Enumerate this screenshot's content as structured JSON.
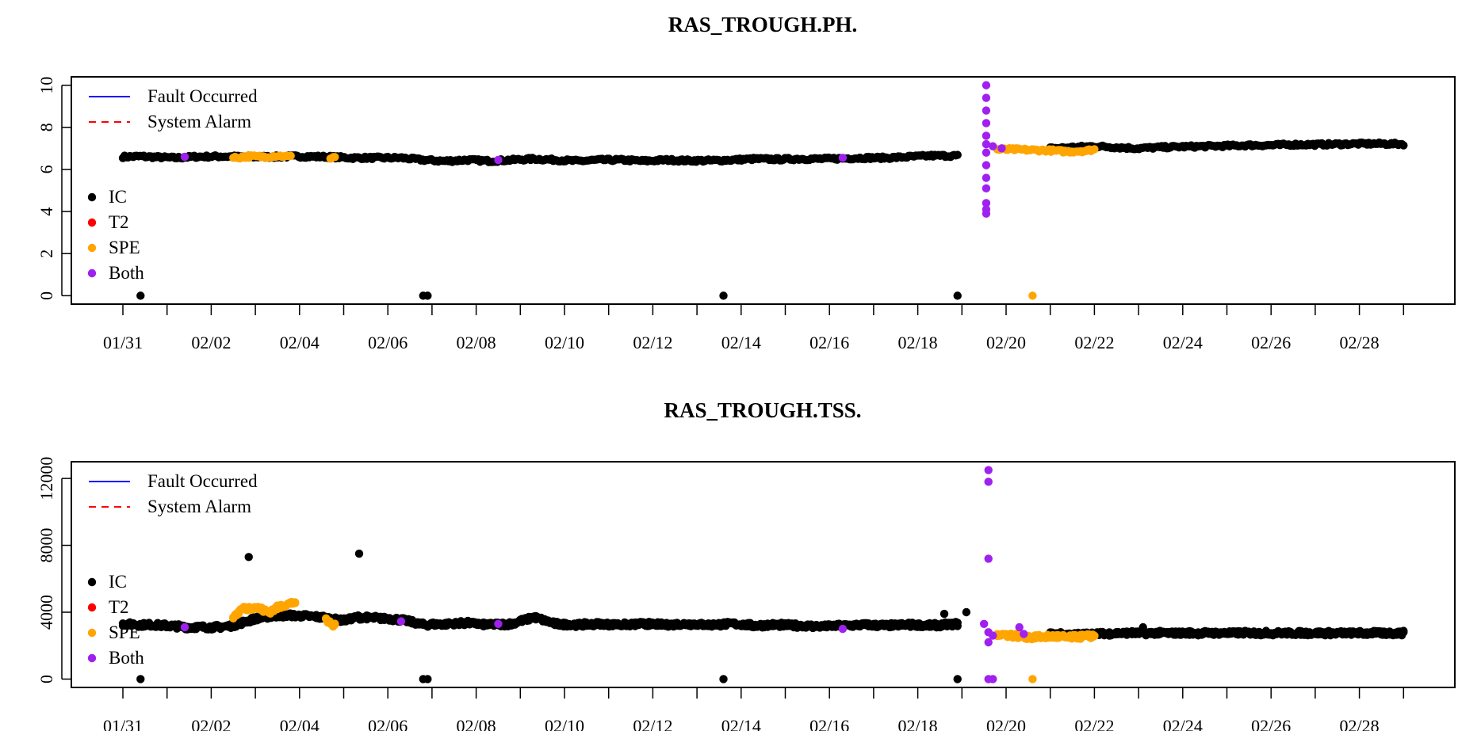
{
  "legend": {
    "lines": [
      {
        "label": "Fault Occurred",
        "color": "#0000ff",
        "dash": "solid"
      },
      {
        "label": "System Alarm",
        "color": "#ff0000",
        "dash": "dashed"
      }
    ],
    "points": [
      {
        "label": "IC",
        "color": "#000000"
      },
      {
        "label": "T2",
        "color": "#ff0000"
      },
      {
        "label": "SPE",
        "color": "#ffa500"
      },
      {
        "label": "Both",
        "color": "#a020f0"
      }
    ]
  },
  "chart_data": [
    {
      "type": "scatter",
      "title": "RAS_TROUGH.PH.",
      "xlabel": "",
      "ylabel": "",
      "x_tick_labels": [
        "01/31",
        "02/02",
        "02/04",
        "02/06",
        "02/08",
        "02/10",
        "02/12",
        "02/14",
        "02/16",
        "02/18",
        "02/20",
        "02/22",
        "02/24",
        "02/26",
        "02/28"
      ],
      "x_range_days": [
        "01/30",
        "03/02"
      ],
      "y_ticks": [
        0,
        2,
        4,
        6,
        8,
        10
      ],
      "ylim": [
        -0.4,
        10.4
      ],
      "grid": false,
      "legend_placement": "left",
      "series": [
        {
          "name": "IC",
          "color": "#000000",
          "segments": [
            {
              "x_start": "01/31 00:00",
              "x_end": "02/19 09:00",
              "values": [
                [
                  0.0,
                  6.6
                ],
                [
                  0.4,
                  6.62
                ],
                [
                  0.8,
                  6.58
                ],
                [
                  1.2,
                  6.55
                ],
                [
                  1.6,
                  6.6
                ],
                [
                  2.2,
                  6.62
                ],
                [
                  2.8,
                  6.6
                ],
                [
                  3.4,
                  6.6
                ],
                [
                  4.0,
                  6.62
                ],
                [
                  4.6,
                  6.6
                ],
                [
                  5.2,
                  6.55
                ],
                [
                  5.8,
                  6.55
                ],
                [
                  6.3,
                  6.55
                ],
                [
                  6.8,
                  6.45
                ],
                [
                  7.3,
                  6.4
                ],
                [
                  7.8,
                  6.45
                ],
                [
                  8.3,
                  6.4
                ],
                [
                  8.8,
                  6.45
                ],
                [
                  9.3,
                  6.5
                ],
                [
                  9.8,
                  6.45
                ],
                [
                  10.3,
                  6.4
                ],
                [
                  10.8,
                  6.45
                ],
                [
                  11.3,
                  6.45
                ],
                [
                  11.8,
                  6.4
                ],
                [
                  12.3,
                  6.45
                ],
                [
                  12.8,
                  6.42
                ],
                [
                  13.3,
                  6.42
                ],
                [
                  13.8,
                  6.45
                ],
                [
                  14.3,
                  6.5
                ],
                [
                  14.8,
                  6.48
                ],
                [
                  15.3,
                  6.5
                ],
                [
                  15.8,
                  6.5
                ],
                [
                  16.3,
                  6.52
                ],
                [
                  16.8,
                  6.55
                ],
                [
                  17.3,
                  6.55
                ],
                [
                  17.8,
                  6.6
                ],
                [
                  18.3,
                  6.65
                ],
                [
                  18.9,
                  6.65
                ]
              ]
            },
            {
              "x_start": "02/22 00:00",
              "x_end": "02/28 12:00",
              "values": [
                [
                  21.0,
                  7.0
                ],
                [
                  21.5,
                  7.05
                ],
                [
                  22.0,
                  7.1
                ],
                [
                  22.5,
                  7.05
                ],
                [
                  23.0,
                  7.0
                ],
                [
                  23.5,
                  7.05
                ],
                [
                  24.0,
                  7.08
                ],
                [
                  24.5,
                  7.1
                ],
                [
                  25.0,
                  7.12
                ],
                [
                  25.5,
                  7.15
                ],
                [
                  26.0,
                  7.15
                ],
                [
                  26.5,
                  7.18
                ],
                [
                  27.0,
                  7.18
                ],
                [
                  27.5,
                  7.2
                ],
                [
                  28.0,
                  7.22
                ],
                [
                  28.5,
                  7.22
                ],
                [
                  29.0,
                  7.2
                ]
              ]
            }
          ],
          "outliers": [
            [
              0.4,
              0.0
            ],
            [
              6.8,
              0.0
            ],
            [
              6.9,
              0.0
            ],
            [
              13.6,
              0.0
            ],
            [
              18.9,
              0.0
            ]
          ]
        },
        {
          "name": "SPE",
          "color": "#ffa500",
          "segments": [
            {
              "x_start": "02/02 12:00",
              "x_end": "02/03 12:00",
              "values": [
                [
                  2.5,
                  6.55
                ],
                [
                  2.9,
                  6.62
                ],
                [
                  3.2,
                  6.6
                ],
                [
                  3.5,
                  6.65
                ],
                [
                  3.8,
                  6.6
                ]
              ]
            },
            {
              "x_start": "02/04 18:00",
              "x_end": "02/04 20:00",
              "values": [
                [
                  4.7,
                  6.55
                ],
                [
                  4.8,
                  6.6
                ]
              ]
            },
            {
              "x_start": "02/19 18:00",
              "x_end": "02/21 23:00",
              "values": [
                [
                  19.8,
                  6.95
                ],
                [
                  20.2,
                  6.95
                ],
                [
                  20.6,
                  6.92
                ],
                [
                  21.0,
                  6.9
                ],
                [
                  21.4,
                  6.85
                ],
                [
                  21.8,
                  6.88
                ],
                [
                  22.0,
                  6.95
                ]
              ]
            }
          ],
          "outliers": [
            [
              20.6,
              0.0
            ]
          ]
        },
        {
          "name": "Both",
          "color": "#a020f0",
          "points": [
            [
              19.55,
              10.0
            ],
            [
              19.55,
              9.4
            ],
            [
              19.55,
              8.8
            ],
            [
              19.55,
              8.2
            ],
            [
              19.55,
              7.6
            ],
            [
              19.55,
              7.2
            ],
            [
              19.55,
              6.8
            ],
            [
              19.55,
              6.2
            ],
            [
              19.55,
              5.6
            ],
            [
              19.55,
              5.1
            ],
            [
              19.55,
              4.4
            ],
            [
              19.55,
              4.1
            ],
            [
              19.55,
              3.9
            ],
            [
              19.7,
              7.1
            ],
            [
              19.9,
              7.0
            ],
            [
              1.4,
              6.6
            ],
            [
              8.5,
              6.45
            ],
            [
              16.3,
              6.55
            ]
          ]
        }
      ]
    },
    {
      "type": "scatter",
      "title": "RAS_TROUGH.TSS.",
      "xlabel": "",
      "ylabel": "",
      "x_tick_labels": [
        "01/31",
        "02/02",
        "02/04",
        "02/06",
        "02/08",
        "02/10",
        "02/12",
        "02/14",
        "02/16",
        "02/18",
        "02/20",
        "02/22",
        "02/24",
        "02/26",
        "02/28"
      ],
      "x_range_days": [
        "01/30",
        "03/02"
      ],
      "y_ticks": [
        0,
        4000,
        8000,
        12000
      ],
      "ylim": [
        -500,
        13000
      ],
      "grid": false,
      "legend_placement": "left",
      "series": [
        {
          "name": "IC",
          "color": "#000000",
          "segments": [
            {
              "x_start": "01/31 00:00",
              "x_end": "02/19 09:00",
              "values": [
                [
                  0.0,
                  3300
                ],
                [
                  0.5,
                  3250
                ],
                [
                  1.0,
                  3200
                ],
                [
                  1.5,
                  3100
                ],
                [
                  2.0,
                  3100
                ],
                [
                  2.4,
                  3150
                ],
                [
                  3.0,
                  3600
                ],
                [
                  3.5,
                  3800
                ],
                [
                  4.0,
                  3800
                ],
                [
                  4.5,
                  3700
                ],
                [
                  5.0,
                  3500
                ],
                [
                  5.3,
                  3700
                ],
                [
                  5.8,
                  3650
                ],
                [
                  6.3,
                  3550
                ],
                [
                  6.8,
                  3250
                ],
                [
                  7.3,
                  3300
                ],
                [
                  7.8,
                  3350
                ],
                [
                  8.3,
                  3250
                ],
                [
                  8.8,
                  3300
                ],
                [
                  9.3,
                  3700
                ],
                [
                  9.8,
                  3300
                ],
                [
                  10.3,
                  3250
                ],
                [
                  10.8,
                  3300
                ],
                [
                  11.3,
                  3250
                ],
                [
                  11.8,
                  3300
                ],
                [
                  12.3,
                  3250
                ],
                [
                  12.8,
                  3300
                ],
                [
                  13.3,
                  3250
                ],
                [
                  13.8,
                  3300
                ],
                [
                  14.3,
                  3200
                ],
                [
                  14.8,
                  3250
                ],
                [
                  15.3,
                  3200
                ],
                [
                  15.8,
                  3150
                ],
                [
                  16.3,
                  3200
                ],
                [
                  16.8,
                  3250
                ],
                [
                  17.3,
                  3200
                ],
                [
                  17.8,
                  3250
                ],
                [
                  18.3,
                  3200
                ],
                [
                  18.9,
                  3300
                ]
              ]
            },
            {
              "x_start": "02/22 00:00",
              "x_end": "02/28 12:00",
              "values": [
                [
                  21.0,
                  2700
                ],
                [
                  21.5,
                  2650
                ],
                [
                  22.0,
                  2700
                ],
                [
                  22.5,
                  2750
                ],
                [
                  23.0,
                  2750
                ],
                [
                  23.5,
                  2750
                ],
                [
                  24.0,
                  2750
                ],
                [
                  24.5,
                  2750
                ],
                [
                  25.0,
                  2750
                ],
                [
                  25.5,
                  2750
                ],
                [
                  26.0,
                  2750
                ],
                [
                  26.5,
                  2750
                ],
                [
                  27.0,
                  2750
                ],
                [
                  27.5,
                  2750
                ],
                [
                  28.0,
                  2750
                ],
                [
                  28.5,
                  2750
                ],
                [
                  29.0,
                  2750
                ]
              ]
            }
          ],
          "outliers": [
            [
              0.4,
              0
            ],
            [
              2.85,
              7300
            ],
            [
              5.35,
              7500
            ],
            [
              6.8,
              0
            ],
            [
              6.9,
              0
            ],
            [
              13.6,
              0
            ],
            [
              18.9,
              0
            ],
            [
              18.6,
              3900
            ],
            [
              19.1,
              4000
            ],
            [
              23.1,
              3100
            ]
          ]
        },
        {
          "name": "SPE",
          "color": "#ffa500",
          "segments": [
            {
              "x_start": "02/02 12:00",
              "x_end": "02/03 23:00",
              "values": [
                [
                  2.5,
                  3700
                ],
                [
                  2.7,
                  4200
                ],
                [
                  3.0,
                  4300
                ],
                [
                  3.3,
                  4000
                ],
                [
                  3.6,
                  4400
                ],
                [
                  3.9,
                  4600
                ]
              ]
            },
            {
              "x_start": "02/04 14:00",
              "x_end": "02/04 23:00",
              "values": [
                [
                  4.6,
                  3500
                ],
                [
                  4.8,
                  3200
                ]
              ]
            },
            {
              "x_start": "02/19 18:00",
              "x_end": "02/21 23:00",
              "values": [
                [
                  19.8,
                  2700
                ],
                [
                  20.2,
                  2600
                ],
                [
                  20.6,
                  2500
                ],
                [
                  21.0,
                  2550
                ],
                [
                  21.4,
                  2500
                ],
                [
                  21.8,
                  2550
                ],
                [
                  22.0,
                  2600
                ]
              ]
            }
          ],
          "outliers": [
            [
              20.6,
              0
            ]
          ]
        },
        {
          "name": "Both",
          "color": "#a020f0",
          "points": [
            [
              19.6,
              12500
            ],
            [
              19.6,
              11800
            ],
            [
              19.6,
              7200
            ],
            [
              19.5,
              3300
            ],
            [
              19.6,
              2800
            ],
            [
              19.6,
              2200
            ],
            [
              19.6,
              0
            ],
            [
              19.7,
              0
            ],
            [
              19.7,
              2600
            ],
            [
              20.3,
              3100
            ],
            [
              20.4,
              2700
            ],
            [
              1.4,
              3100
            ],
            [
              8.5,
              3300
            ],
            [
              16.3,
              3000
            ],
            [
              6.3,
              3450
            ]
          ]
        }
      ]
    }
  ]
}
